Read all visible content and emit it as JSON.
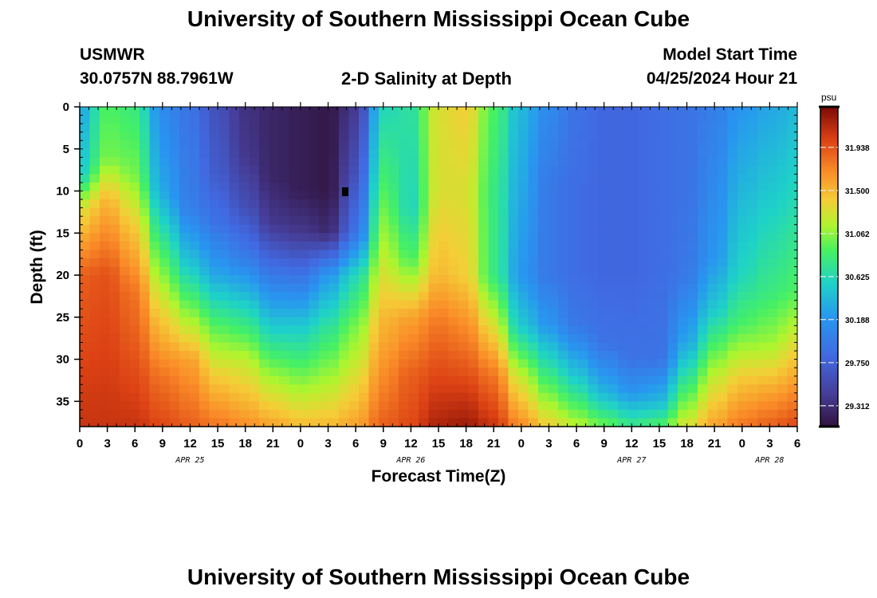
{
  "header": {
    "title": "University of Southern Mississippi Ocean Cube",
    "station": "USMWR",
    "coords": "30.0757N  88.7961W",
    "subtitle": "2-D Salinity at Depth",
    "model_label": "Model Start Time",
    "model_time": "04/25/2024 Hour 21"
  },
  "footer": {
    "title": "University of Southern Mississippi Ocean Cube"
  },
  "chart_data": {
    "type": "heatmap",
    "title": "2-D Salinity at Depth",
    "xlabel": "Forecast Time(Z)",
    "ylabel": "Depth (ft)",
    "x_tick_labels": [
      "0",
      "3",
      "6",
      "9",
      "12",
      "15",
      "18",
      "21",
      "0",
      "3",
      "6",
      "9",
      "12",
      "15",
      "18",
      "21",
      "0",
      "3",
      "6",
      "9",
      "12",
      "15",
      "18",
      "21",
      "0",
      "3",
      "6"
    ],
    "date_labels": [
      {
        "label": "APR 25",
        "at_tick": 4
      },
      {
        "label": "APR 26",
        "at_tick": 12
      },
      {
        "label": "APR 27",
        "at_tick": 20
      },
      {
        "label": "APR 28",
        "at_tick": 25
      }
    ],
    "x_range_hours": [
      0,
      78
    ],
    "y_ticks": [
      0,
      5,
      10,
      15,
      20,
      25,
      30,
      35
    ],
    "y_range_ft": [
      0,
      38
    ],
    "y_inverted": true,
    "colorbar": {
      "unit": "psu",
      "min": 29.1,
      "max": 32.35,
      "tick_labels": [
        "31.938",
        "31.500",
        "31.062",
        "30.625",
        "30.188",
        "29.750",
        "29.312"
      ]
    },
    "profiles": [
      {
        "hour": 0,
        "values": [
          [
            0,
            30.3
          ],
          [
            8,
            30.55
          ],
          [
            12,
            31.3
          ],
          [
            20,
            31.9
          ],
          [
            38,
            32.1
          ]
        ]
      },
      {
        "hour": 3,
        "values": [
          [
            0,
            30.9
          ],
          [
            6,
            31.0
          ],
          [
            11,
            31.5
          ],
          [
            20,
            31.95
          ],
          [
            38,
            32.1
          ]
        ]
      },
      {
        "hour": 6,
        "values": [
          [
            0,
            30.8
          ],
          [
            8,
            31.0
          ],
          [
            14,
            31.4
          ],
          [
            22,
            31.8
          ],
          [
            38,
            32.1
          ]
        ]
      },
      {
        "hour": 9,
        "values": [
          [
            0,
            30.1
          ],
          [
            10,
            30.3
          ],
          [
            18,
            30.9
          ],
          [
            25,
            31.4
          ],
          [
            32,
            31.8
          ],
          [
            38,
            32.0
          ]
        ]
      },
      {
        "hour": 12,
        "values": [
          [
            0,
            29.9
          ],
          [
            12,
            30.0
          ],
          [
            19,
            30.5
          ],
          [
            24,
            31.0
          ],
          [
            30,
            31.6
          ],
          [
            38,
            31.9
          ]
        ]
      },
      {
        "hour": 15,
        "values": [
          [
            0,
            29.6
          ],
          [
            8,
            29.7
          ],
          [
            14,
            29.9
          ],
          [
            20,
            30.3
          ],
          [
            26,
            30.9
          ],
          [
            32,
            31.4
          ],
          [
            38,
            31.8
          ]
        ]
      },
      {
        "hour": 18,
        "values": [
          [
            0,
            29.35
          ],
          [
            6,
            29.4
          ],
          [
            12,
            29.6
          ],
          [
            18,
            30.0
          ],
          [
            24,
            30.6
          ],
          [
            30,
            31.2
          ],
          [
            38,
            31.7
          ]
        ]
      },
      {
        "hour": 21,
        "values": [
          [
            0,
            29.25
          ],
          [
            8,
            29.25
          ],
          [
            14,
            29.4
          ],
          [
            20,
            29.95
          ],
          [
            26,
            30.5
          ],
          [
            32,
            31.1
          ],
          [
            38,
            31.6
          ]
        ]
      },
      {
        "hour": 24,
        "values": [
          [
            0,
            29.2
          ],
          [
            10,
            29.2
          ],
          [
            15,
            29.4
          ],
          [
            20,
            29.9
          ],
          [
            26,
            30.5
          ],
          [
            32,
            31.0
          ],
          [
            38,
            31.5
          ]
        ]
      },
      {
        "hour": 27,
        "values": [
          [
            0,
            29.15
          ],
          [
            10,
            29.15
          ],
          [
            15,
            29.3
          ],
          [
            20,
            30.2
          ],
          [
            26,
            30.7
          ],
          [
            32,
            31.1
          ],
          [
            38,
            31.5
          ]
        ]
      },
      {
        "hour": 30,
        "values": [
          [
            0,
            29.4
          ],
          [
            8,
            29.6
          ],
          [
            15,
            29.9
          ],
          [
            20,
            30.6
          ],
          [
            26,
            31.0
          ],
          [
            32,
            31.3
          ],
          [
            38,
            31.6
          ]
        ]
      },
      {
        "hour": 33,
        "values": [
          [
            0,
            30.6
          ],
          [
            10,
            30.9
          ],
          [
            18,
            31.2
          ],
          [
            25,
            31.5
          ],
          [
            32,
            31.7
          ],
          [
            38,
            31.9
          ]
        ]
      },
      {
        "hour": 36,
        "values": [
          [
            0,
            30.7
          ],
          [
            12,
            30.6
          ],
          [
            18,
            30.9
          ],
          [
            25,
            31.6
          ],
          [
            32,
            31.9
          ],
          [
            38,
            32.0
          ]
        ]
      },
      {
        "hour": 39,
        "values": [
          [
            0,
            31.3
          ],
          [
            10,
            31.3
          ],
          [
            20,
            31.5
          ],
          [
            26,
            31.8
          ],
          [
            38,
            32.2
          ]
        ]
      },
      {
        "hour": 42,
        "values": [
          [
            0,
            31.4
          ],
          [
            10,
            31.3
          ],
          [
            20,
            31.4
          ],
          [
            26,
            31.7
          ],
          [
            38,
            32.25
          ]
        ]
      },
      {
        "hour": 45,
        "values": [
          [
            0,
            30.9
          ],
          [
            10,
            30.8
          ],
          [
            20,
            30.8
          ],
          [
            26,
            31.3
          ],
          [
            32,
            31.8
          ],
          [
            38,
            32.1
          ]
        ]
      },
      {
        "hour": 48,
        "values": [
          [
            0,
            30.4
          ],
          [
            10,
            30.3
          ],
          [
            20,
            30.2
          ],
          [
            26,
            30.5
          ],
          [
            32,
            31.2
          ],
          [
            38,
            31.7
          ]
        ]
      },
      {
        "hour": 51,
        "values": [
          [
            0,
            30.1
          ],
          [
            10,
            29.95
          ],
          [
            20,
            29.95
          ],
          [
            26,
            30.2
          ],
          [
            32,
            30.8
          ],
          [
            38,
            31.4
          ]
        ]
      },
      {
        "hour": 54,
        "values": [
          [
            0,
            29.9
          ],
          [
            10,
            29.85
          ],
          [
            20,
            29.85
          ],
          [
            26,
            29.95
          ],
          [
            32,
            30.5
          ],
          [
            38,
            31.2
          ]
        ]
      },
      {
        "hour": 57,
        "values": [
          [
            0,
            29.8
          ],
          [
            10,
            29.8
          ],
          [
            20,
            29.8
          ],
          [
            28,
            29.9
          ],
          [
            34,
            30.4
          ],
          [
            38,
            31.0
          ]
        ]
      },
      {
        "hour": 60,
        "values": [
          [
            0,
            29.8
          ],
          [
            10,
            29.8
          ],
          [
            20,
            29.8
          ],
          [
            30,
            29.9
          ],
          [
            34,
            30.2
          ],
          [
            38,
            30.8
          ]
        ]
      },
      {
        "hour": 63,
        "values": [
          [
            0,
            29.85
          ],
          [
            10,
            29.85
          ],
          [
            20,
            29.85
          ],
          [
            30,
            29.9
          ],
          [
            35,
            30.4
          ],
          [
            38,
            30.9
          ]
        ]
      },
      {
        "hour": 66,
        "values": [
          [
            0,
            29.9
          ],
          [
            10,
            29.9
          ],
          [
            20,
            29.95
          ],
          [
            28,
            30.3
          ],
          [
            34,
            30.9
          ],
          [
            38,
            31.3
          ]
        ]
      },
      {
        "hour": 69,
        "values": [
          [
            0,
            30.0
          ],
          [
            10,
            30.1
          ],
          [
            18,
            30.2
          ],
          [
            24,
            30.5
          ],
          [
            32,
            31.2
          ],
          [
            38,
            31.6
          ]
        ]
      },
      {
        "hour": 72,
        "values": [
          [
            0,
            30.2
          ],
          [
            10,
            30.4
          ],
          [
            20,
            30.6
          ],
          [
            26,
            30.9
          ],
          [
            32,
            31.4
          ],
          [
            38,
            31.8
          ]
        ]
      },
      {
        "hour": 75,
        "values": [
          [
            0,
            30.3
          ],
          [
            10,
            30.5
          ],
          [
            22,
            30.8
          ],
          [
            28,
            31.1
          ],
          [
            34,
            31.6
          ],
          [
            38,
            31.9
          ]
        ]
      },
      {
        "hour": 78,
        "values": [
          [
            0,
            30.4
          ],
          [
            10,
            30.6
          ],
          [
            22,
            30.9
          ],
          [
            28,
            31.3
          ],
          [
            34,
            31.7
          ],
          [
            38,
            32.0
          ]
        ]
      }
    ],
    "grid": false
  }
}
